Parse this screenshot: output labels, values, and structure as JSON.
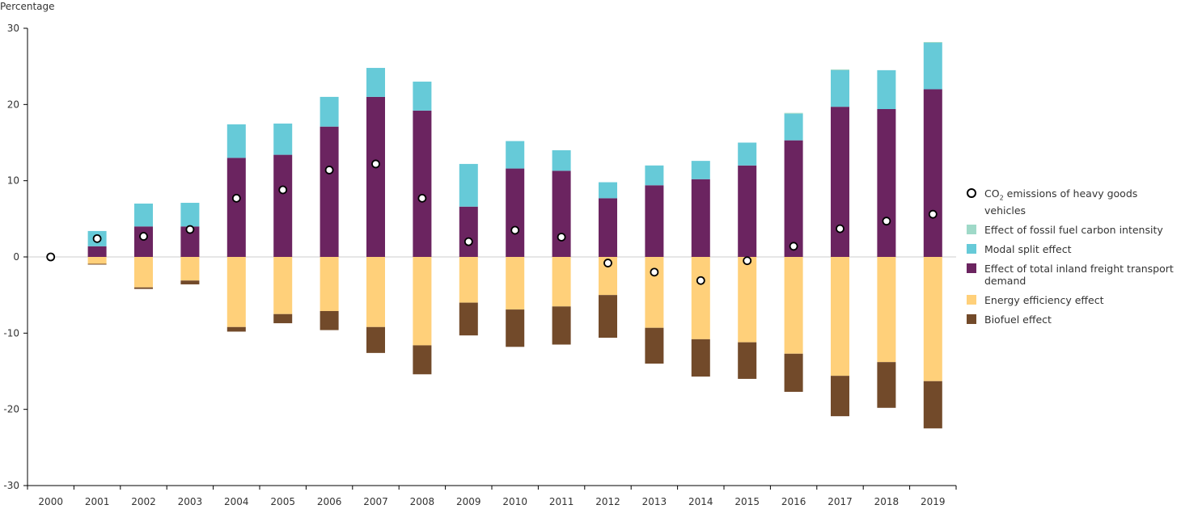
{
  "chart_data": {
    "type": "bar",
    "stacked": true,
    "ylabel": "Percentage",
    "ylim": [
      -30,
      30
    ],
    "yticks": [
      -30,
      -20,
      -10,
      0,
      10,
      20,
      30
    ],
    "grid": false,
    "legend_placement": "right",
    "categories": [
      "2000",
      "2001",
      "2002",
      "2003",
      "2004",
      "2005",
      "2006",
      "2007",
      "2008",
      "2009",
      "2010",
      "2011",
      "2012",
      "2013",
      "2014",
      "2015",
      "2016",
      "2017",
      "2018",
      "2019"
    ],
    "series": [
      {
        "name": "Effect of total inland freight transport demand",
        "color": "#6b2460",
        "values": [
          0,
          1.4,
          4.0,
          4.0,
          13.0,
          13.4,
          17.1,
          21.0,
          19.2,
          6.6,
          11.6,
          11.3,
          7.7,
          9.4,
          10.2,
          12.0,
          15.3,
          19.7,
          19.4,
          22.0
        ]
      },
      {
        "name": "Modal split effect",
        "color": "#66cad8",
        "values": [
          0,
          2.0,
          3.0,
          3.1,
          4.4,
          4.1,
          3.9,
          3.8,
          3.8,
          5.6,
          3.6,
          2.7,
          2.1,
          2.6,
          2.4,
          3.0,
          3.5,
          4.8,
          5.1,
          6.1
        ]
      },
      {
        "name": "Effect of fossil fuel carbon intensity",
        "color": "#9fd9c8",
        "values": [
          0,
          0,
          0,
          0,
          0,
          0,
          0,
          0,
          0,
          0,
          0,
          0,
          0,
          0,
          0,
          0,
          0.1,
          0.1,
          0,
          0.1
        ]
      },
      {
        "name": "Energy efficiency effect",
        "color": "#ffd07a",
        "values": [
          0,
          -0.9,
          -4.0,
          -3.1,
          -9.2,
          -7.5,
          -7.1,
          -9.2,
          -11.6,
          -6.0,
          -6.9,
          -6.5,
          -5.0,
          -9.3,
          -10.8,
          -11.2,
          -12.7,
          -15.6,
          -13.8,
          -16.3
        ]
      },
      {
        "name": "Biofuel effect",
        "color": "#724a2a",
        "values": [
          0,
          -0.1,
          -0.2,
          -0.5,
          -0.6,
          -1.2,
          -2.5,
          -3.4,
          -3.8,
          -4.3,
          -4.9,
          -5.0,
          -5.6,
          -4.7,
          -4.9,
          -4.8,
          -5.0,
          -5.3,
          -6.0,
          -6.2
        ]
      }
    ],
    "points": {
      "name": "CO2 emissions of heavy goods vehicles",
      "values": [
        0,
        2.4,
        2.7,
        3.6,
        7.7,
        8.8,
        11.4,
        12.2,
        7.7,
        2.0,
        3.5,
        2.6,
        -0.8,
        -2.0,
        -3.1,
        -0.5,
        1.4,
        3.7,
        4.7,
        5.6
      ]
    }
  },
  "legend": [
    {
      "label_main": "CO",
      "label_sub": "2",
      "label_rest": " emissions of heavy goods vehicles",
      "type": "point"
    },
    {
      "label": "Effect of fossil fuel carbon intensity",
      "color": "#9fd9c8"
    },
    {
      "label": "Modal split effect",
      "color": "#66cad8"
    },
    {
      "label": "Effect of total inland freight transport demand",
      "color": "#6b2460"
    },
    {
      "label": "Energy efficiency effect",
      "color": "#ffd07a"
    },
    {
      "label": "Biofuel effect",
      "color": "#724a2a"
    }
  ]
}
